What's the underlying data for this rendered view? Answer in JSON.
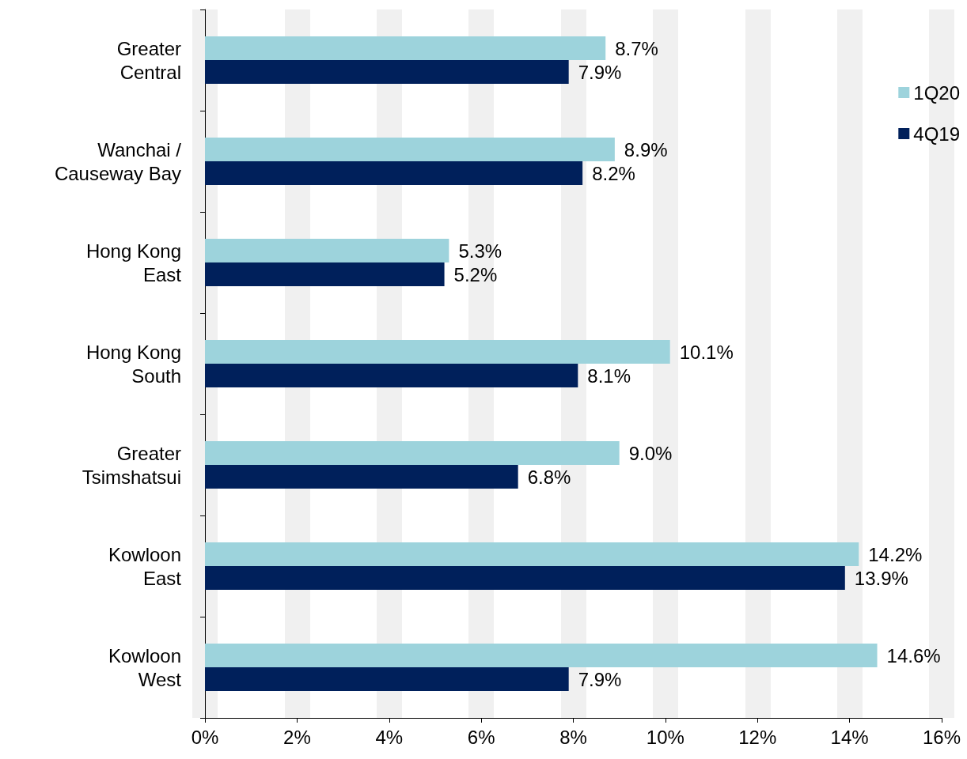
{
  "chart_data": {
    "type": "bar",
    "orientation": "horizontal",
    "categories": [
      "Greater\nCentral",
      "Wanchai /\nCauseway Bay",
      "Hong Kong\nEast",
      "Hong Kong\nSouth",
      "Greater\nTsimshatsui",
      "Kowloon\nEast",
      "Kowloon\nWest"
    ],
    "series": [
      {
        "name": "1Q20",
        "color": "#9dd3dc",
        "values": [
          8.7,
          8.9,
          5.3,
          10.1,
          9.0,
          14.2,
          14.6
        ],
        "value_labels": [
          "8.7%",
          "8.9%",
          "5.3%",
          "10.1%",
          "9.0%",
          "14.2%",
          "14.6%"
        ]
      },
      {
        "name": "4Q19",
        "color": "#00205b",
        "values": [
          7.9,
          8.2,
          5.2,
          8.1,
          6.8,
          13.9,
          7.9
        ],
        "value_labels": [
          "7.9%",
          "8.2%",
          "5.2%",
          "8.1%",
          "6.8%",
          "13.9%",
          "7.9%"
        ]
      }
    ],
    "xlim": [
      0,
      16
    ],
    "xticks": [
      {
        "value": 0,
        "label": "0%"
      },
      {
        "value": 2,
        "label": "2%"
      },
      {
        "value": 4,
        "label": "4%"
      },
      {
        "value": 6,
        "label": "6%"
      },
      {
        "value": 8,
        "label": "8%"
      },
      {
        "value": 10,
        "label": "10%"
      },
      {
        "value": 12,
        "label": "12%"
      },
      {
        "value": 14,
        "label": "14%"
      },
      {
        "value": 16,
        "label": "16%"
      }
    ],
    "grid": "x",
    "legend": "right"
  }
}
